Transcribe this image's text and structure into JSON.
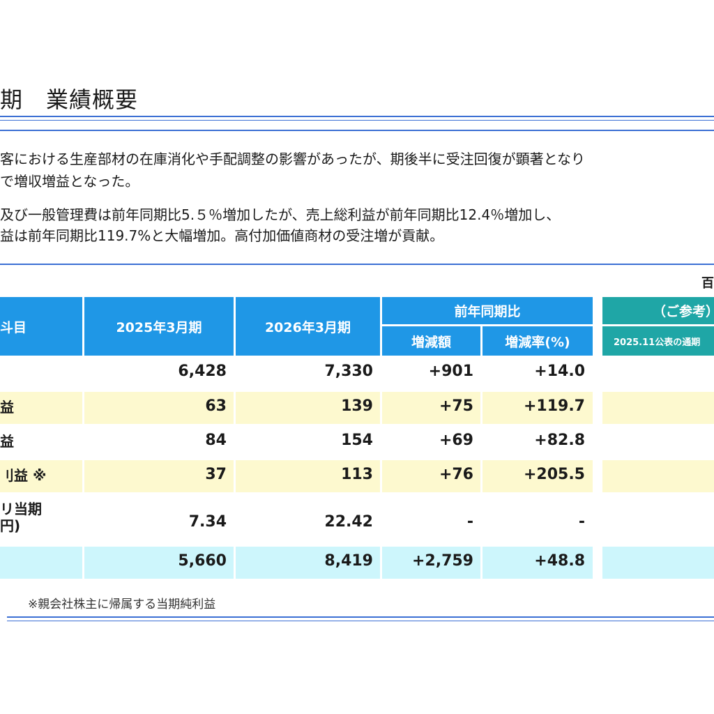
{
  "title": "期　業績概要",
  "paragraphs": [
    "客における生産部材の在庫消化や手配調整の影響があったが、期後半に受注回復が顕著となり",
    "で増収増益となった。",
    "及び一般管理費は前年同期比5.５％増加したが、売上総利益が前年同期比12.4％増加し、",
    "益は前年同期比119.7%と大幅増加。高付加価値商材の受注増が貢献。"
  ],
  "unit_label": "百",
  "table": {
    "headers": {
      "item": "斗目",
      "fy2025": "2025年3月期",
      "fy2026": "2026年3月期",
      "yoy": "前年同期比",
      "diff": "増減額",
      "rate": "増減率(%)",
      "ref": "（ご参考）",
      "ref_sub": "2025.11公表の通期"
    },
    "rows": [
      {
        "label": "",
        "fy2025": "6,428",
        "fy2026": "7,330",
        "diff": "+901",
        "rate": "+14.0",
        "bg": "white"
      },
      {
        "label": "益",
        "fy2025": "63",
        "fy2026": "139",
        "diff": "+75",
        "rate": "+119.7",
        "bg": "yellow"
      },
      {
        "label": "益",
        "fy2025": "84",
        "fy2026": "154",
        "diff": "+69",
        "rate": "+82.8",
        "bg": "white"
      },
      {
        "label": "刂益 ※",
        "fy2025": "37",
        "fy2026": "113",
        "diff": "+76",
        "rate": "+205.5",
        "bg": "yellow"
      },
      {
        "label": "リ当期\n円)",
        "fy2025": "7.34",
        "fy2026": "22.42",
        "diff": "-",
        "rate": "-",
        "bg": "white"
      },
      {
        "label": "",
        "fy2025": "5,660",
        "fy2026": "8,419",
        "diff": "+2,759",
        "rate": "+48.8",
        "bg": "cyan"
      }
    ]
  },
  "footnote": "※親会社株主に帰属する当期純利益",
  "colors": {
    "header_blue": "#1f97e6",
    "header_teal": "#1fa6a6",
    "rule_blue": "#3b6fd4",
    "row_yellow": "#fdf9cf",
    "row_cyan": "#cdf6fc"
  }
}
